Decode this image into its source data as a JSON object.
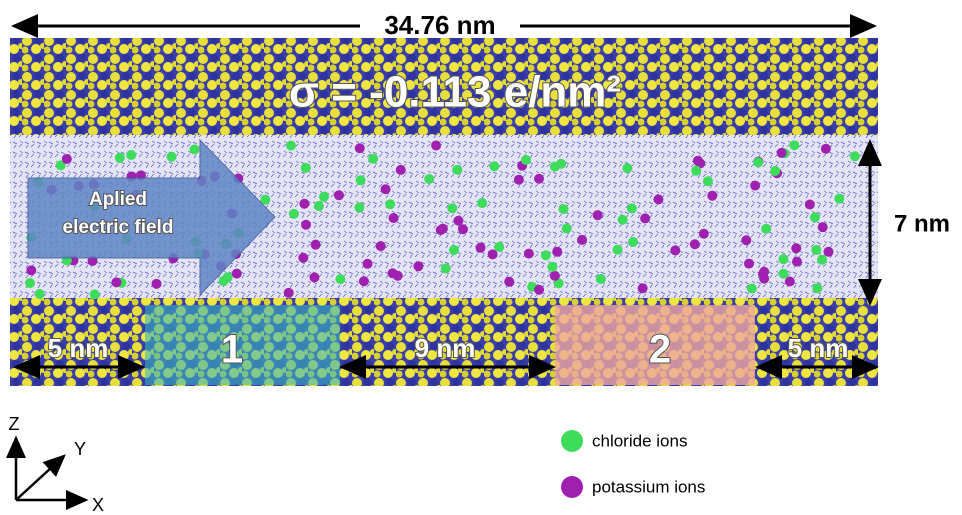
{
  "length_label": "34.76 nm",
  "charge_label": "σ = -0.113 e/nm²",
  "field_label": [
    "Aplied",
    "electric field"
  ],
  "height_label": "7 nm",
  "segments": [
    {
      "label": "5 nm"
    },
    {
      "label": "1"
    },
    {
      "label": "9 nm"
    },
    {
      "label": "2"
    },
    {
      "label": "5 nm"
    }
  ],
  "axes": {
    "z": "Z",
    "y": "Y",
    "x": "X"
  },
  "legend": [
    {
      "label": "chloride ions"
    },
    {
      "label": "potassium ions"
    }
  ]
}
